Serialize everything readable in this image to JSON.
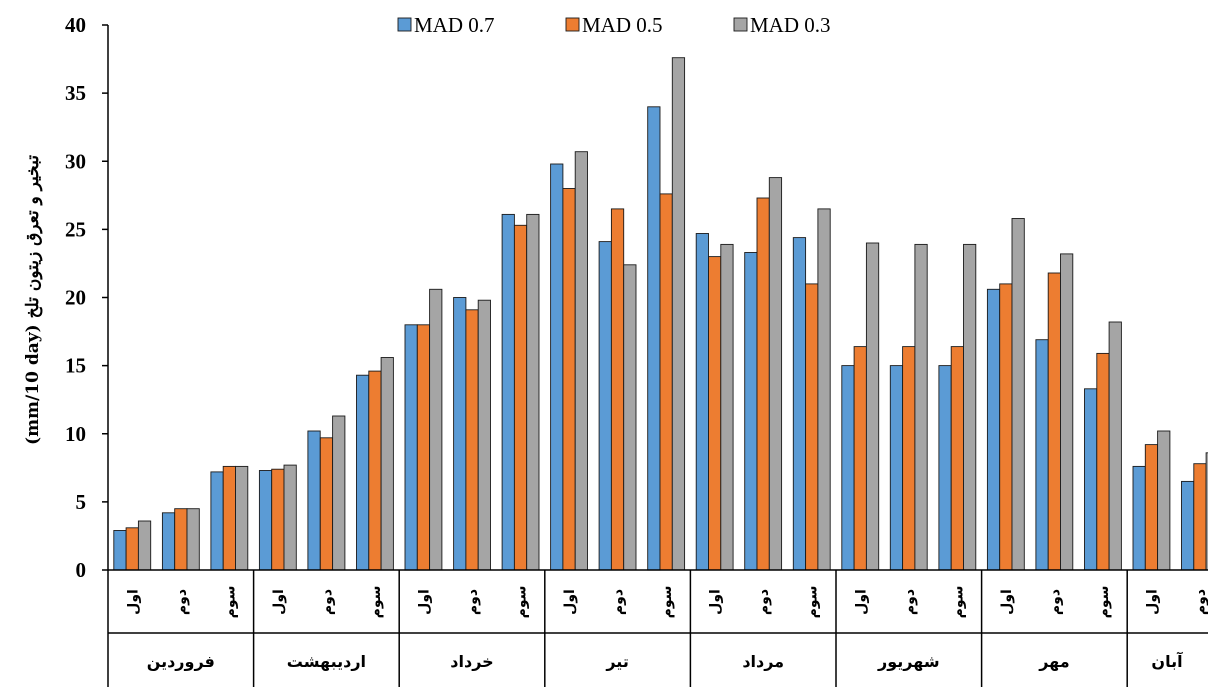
{
  "chart_data": {
    "type": "bar",
    "ylabel": "(mm/10 day) تبخیر و تعرق زیتون تلخ",
    "ylim": [
      0,
      40
    ],
    "yticks": [
      0,
      5,
      10,
      15,
      20,
      25,
      30,
      35,
      40
    ],
    "grid": false,
    "legend_position": "top-center",
    "months": [
      "فروردین",
      "اردیبهشت",
      "خرداد",
      "تیر",
      "مرداد",
      "شهریور",
      "مهر",
      "آبان"
    ],
    "decades": [
      "اول",
      "دوم",
      "سوم"
    ],
    "categories": [
      "فروردین اول",
      "فروردین دوم",
      "فروردین سوم",
      "اردیبهشت اول",
      "اردیبهشت دوم",
      "اردیبهشت سوم",
      "خرداد اول",
      "خرداد دوم",
      "خرداد سوم",
      "تیر اول",
      "تیر دوم",
      "تیر سوم",
      "مرداد اول",
      "مرداد دوم",
      "مرداد سوم",
      "شهریور اول",
      "شهریور دوم",
      "شهریور سوم",
      "مهر اول",
      "مهر دوم",
      "مهر سوم",
      "آبان اول",
      "آبان دوم"
    ],
    "series": [
      {
        "name": "MAD 0.7",
        "color": "#5b9bd5",
        "values": [
          2.9,
          4.2,
          7.2,
          7.3,
          10.2,
          14.3,
          18.0,
          20.0,
          26.1,
          29.8,
          24.1,
          34.0,
          24.7,
          23.3,
          24.4,
          15.0,
          15.0,
          15.0,
          20.6,
          16.9,
          13.3,
          7.6,
          6.5
        ]
      },
      {
        "name": "MAD 0.5",
        "color": "#ed7d31",
        "values": [
          3.1,
          4.5,
          7.6,
          7.4,
          9.7,
          14.6,
          18.0,
          19.1,
          25.3,
          28.0,
          26.5,
          27.6,
          23.0,
          27.3,
          21.0,
          16.4,
          16.4,
          16.4,
          21.0,
          21.8,
          15.9,
          9.2,
          7.8
        ]
      },
      {
        "name": "MAD 0.3",
        "color": "#a5a5a5",
        "values": [
          3.6,
          4.5,
          7.6,
          7.7,
          11.3,
          15.6,
          20.6,
          19.8,
          26.1,
          30.7,
          22.4,
          37.6,
          23.9,
          28.8,
          26.5,
          24.0,
          23.9,
          23.9,
          25.8,
          23.2,
          18.2,
          10.2,
          8.6
        ]
      }
    ]
  }
}
